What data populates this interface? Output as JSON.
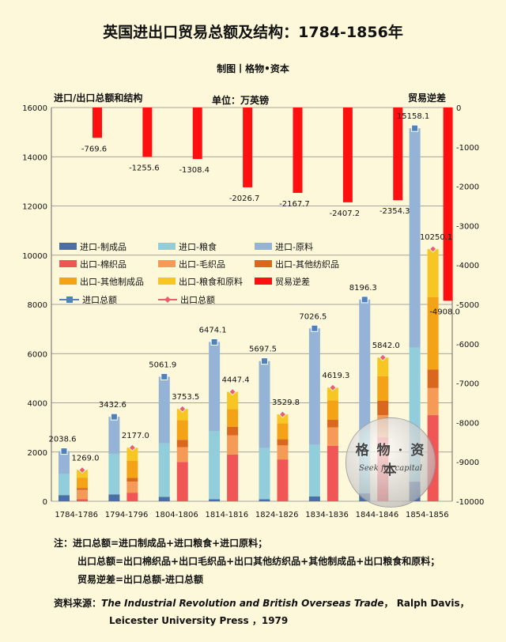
{
  "title": "英国进出口贸易总额及结构：1784-1856年",
  "credit": "制图丨格物•资本",
  "left_axis_title": "进口/出口总额和结构",
  "unit_label": "单位：万英镑",
  "right_axis_title": "贸易逆差",
  "chart_data": {
    "type": "bar",
    "categories": [
      "1784-1786",
      "1794-1796",
      "1804-1806",
      "1814-1816",
      "1824-1826",
      "1834-1836",
      "1844-1846",
      "1854-1856"
    ],
    "left_ylim": [
      0,
      16000
    ],
    "left_ticks": [
      "0",
      "2000",
      "4000",
      "6000",
      "8000",
      "10000",
      "12000",
      "14000",
      "16000"
    ],
    "right_ylim": [
      -10000,
      0
    ],
    "right_ticks": [
      "0",
      "-1000",
      "-2000",
      "-3000",
      "-4000",
      "-5000",
      "-6000",
      "-7000",
      "-8000",
      "-9000",
      "-10000"
    ],
    "grid": true,
    "legend_position": "left, middle",
    "import_series": [
      {
        "name": "进口-制成品",
        "color": "#4a6fa5",
        "values": [
          250,
          280,
          180,
          80,
          80,
          200,
          320,
          800
        ]
      },
      {
        "name": "进口-粮食",
        "color": "#92cddc",
        "values": [
          850,
          1650,
          2180,
          2780,
          2090,
          2100,
          2580,
          5450
        ]
      },
      {
        "name": "进口-原料",
        "color": "#95b3d7",
        "values": [
          938.6,
          1502.6,
          2701.9,
          3614.1,
          3527.5,
          4726.5,
          5296.3,
          8908.1
        ]
      }
    ],
    "export_series": [
      {
        "name": "出口-棉织品",
        "color": "#f05656",
        "values": [
          80,
          350,
          1600,
          1900,
          1700,
          2250,
          2600,
          3500
        ]
      },
      {
        "name": "出口-毛织品",
        "color": "#f59b57",
        "values": [
          380,
          450,
          600,
          780,
          570,
          750,
          900,
          1100
        ]
      },
      {
        "name": "出口-其他纺织品",
        "color": "#d9681e",
        "values": [
          80,
          150,
          300,
          350,
          250,
          310,
          580,
          750
        ]
      },
      {
        "name": "出口-其他制成品",
        "color": "#f5a316",
        "values": [
          420,
          700,
          800,
          720,
          650,
          790,
          1000,
          2950
        ]
      },
      {
        "name": "出口-粮食和原料",
        "color": "#f7c623",
        "values": [
          309,
          527,
          453.5,
          697.4,
          359.8,
          519.3,
          762,
          1950.1
        ]
      }
    ],
    "deficit": {
      "name": "贸易逆差",
      "color": "#ff1010",
      "values": [
        -769.6,
        -1255.6,
        -1308.4,
        -2026.7,
        -2167.7,
        -2407.2,
        -2354.3,
        -4908.0
      ]
    },
    "deficit_labels": [
      "-769.6",
      "-1255.6",
      "-1308.4",
      "-2026.7",
      "-2167.7",
      "-2407.2",
      "-2354.3",
      "-4908.0"
    ],
    "import_total": {
      "name": "进口总额",
      "color": "#4f81bd",
      "values": [
        2038.6,
        3432.6,
        5061.9,
        6474.1,
        5697.5,
        7026.5,
        8196.3,
        15158.1
      ]
    },
    "import_total_labels": [
      "2038.6",
      "3432.6",
      "5061.9",
      "6474.1",
      "5697.5",
      "7026.5",
      "8196.3",
      "15158.1"
    ],
    "export_total": {
      "name": "出口总额",
      "color": "#e8606a",
      "values": [
        1269.0,
        2177.0,
        3753.5,
        4447.4,
        3529.8,
        4619.3,
        5842.0,
        10250.1
      ]
    },
    "export_total_labels": [
      "1269.0",
      "2177.0",
      "3753.5",
      "4447.4",
      "3529.8",
      "4619.3",
      "5842.0",
      "10250.1"
    ]
  },
  "notes": [
    "注：进口总额=进口制成品+进口粮食+进口原料；",
    "出口总额=出口棉织品+出口毛织品+出口其他纺织品+其他制成品+出口粮食和原料；",
    "贸易逆差=出口总额-进口总额"
  ],
  "source": {
    "prefix": "资料来源：",
    "book": "The Industrial Revolution and British Overseas Trade",
    "rest": "， Ralph Davis，",
    "line2": "Leicester University Press ，1979"
  },
  "watermark": {
    "text": "格 物 · 资 本",
    "sub": "Seek for capital"
  }
}
